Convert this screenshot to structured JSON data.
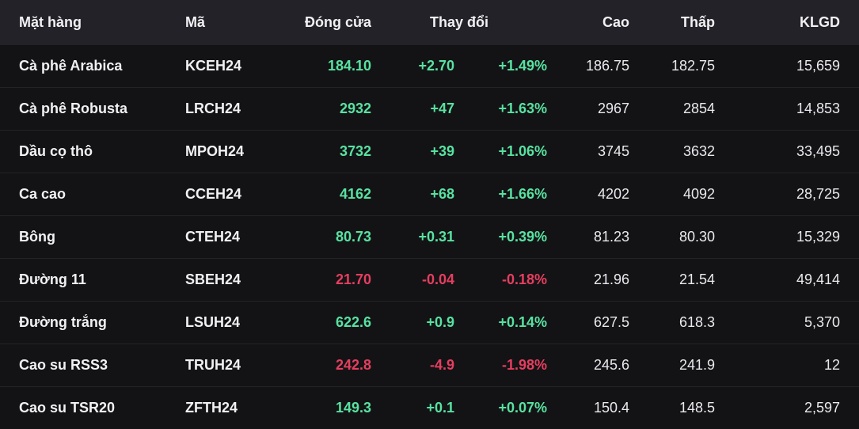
{
  "colors": {
    "up": "#58e2a0",
    "down": "#e53e5f",
    "background": "#131316",
    "header_background": "#222228",
    "text": "#f1f1f3"
  },
  "table": {
    "header": {
      "item": "Mặt hàng",
      "code": "Mã",
      "close": "Đóng cửa",
      "change": "Thay đổi",
      "high": "Cao",
      "low": "Thấp",
      "volume": "KLGD"
    },
    "rows": [
      {
        "name": "Cà phê Arabica",
        "code": "KCEH24",
        "close": "184.10",
        "change": "+2.70",
        "change_pct": "+1.49%",
        "high": "186.75",
        "low": "182.75",
        "volume": "15,659",
        "trend": "up"
      },
      {
        "name": "Cà phê Robusta",
        "code": "LRCH24",
        "close": "2932",
        "change": "+47",
        "change_pct": "+1.63%",
        "high": "2967",
        "low": "2854",
        "volume": "14,853",
        "trend": "up"
      },
      {
        "name": "Dầu cọ thô",
        "code": "MPOH24",
        "close": "3732",
        "change": "+39",
        "change_pct": "+1.06%",
        "high": "3745",
        "low": "3632",
        "volume": "33,495",
        "trend": "up"
      },
      {
        "name": "Ca cao",
        "code": "CCEH24",
        "close": "4162",
        "change": "+68",
        "change_pct": "+1.66%",
        "high": "4202",
        "low": "4092",
        "volume": "28,725",
        "trend": "up"
      },
      {
        "name": "Bông",
        "code": "CTEH24",
        "close": "80.73",
        "change": "+0.31",
        "change_pct": "+0.39%",
        "high": "81.23",
        "low": "80.30",
        "volume": "15,329",
        "trend": "up"
      },
      {
        "name": "Đường 11",
        "code": "SBEH24",
        "close": "21.70",
        "change": "-0.04",
        "change_pct": "-0.18%",
        "high": "21.96",
        "low": "21.54",
        "volume": "49,414",
        "trend": "down"
      },
      {
        "name": "Đường trắng",
        "code": "LSUH24",
        "close": "622.6",
        "change": "+0.9",
        "change_pct": "+0.14%",
        "high": "627.5",
        "low": "618.3",
        "volume": "5,370",
        "trend": "up"
      },
      {
        "name": "Cao su RSS3",
        "code": "TRUH24",
        "close": "242.8",
        "change": "-4.9",
        "change_pct": "-1.98%",
        "high": "245.6",
        "low": "241.9",
        "volume": "12",
        "trend": "down"
      },
      {
        "name": "Cao su TSR20",
        "code": "ZFTH24",
        "close": "149.3",
        "change": "+0.1",
        "change_pct": "+0.07%",
        "high": "150.4",
        "low": "148.5",
        "volume": "2,597",
        "trend": "up"
      }
    ]
  }
}
